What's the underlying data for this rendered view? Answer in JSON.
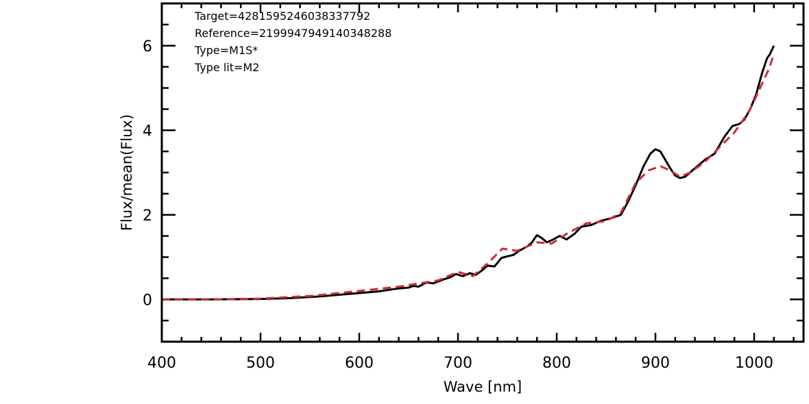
{
  "chart_data": {
    "type": "line",
    "xlabel": "Wave [nm]",
    "ylabel": "Flux/mean(Flux)",
    "xlim": [
      400,
      1050
    ],
    "ylim": [
      -1,
      7
    ],
    "xticks": [
      400,
      500,
      600,
      700,
      800,
      900,
      1000
    ],
    "yticks": [
      0,
      2,
      4,
      6
    ],
    "x_minor_step": 20,
    "y_minor_step": 0.5,
    "grid": false,
    "annotations": [
      "Target=4281595246038337792",
      "Reference=2199947949140348288",
      "Type=M1S*",
      "Type lit=M2"
    ],
    "series": [
      {
        "color": "#000000",
        "style": "solid",
        "points": [
          [
            400,
            0.0
          ],
          [
            450,
            0.0
          ],
          [
            500,
            0.01
          ],
          [
            530,
            0.03
          ],
          [
            560,
            0.07
          ],
          [
            600,
            0.15
          ],
          [
            620,
            0.19
          ],
          [
            640,
            0.26
          ],
          [
            650,
            0.28
          ],
          [
            655,
            0.32
          ],
          [
            660,
            0.3
          ],
          [
            668,
            0.4
          ],
          [
            675,
            0.38
          ],
          [
            685,
            0.47
          ],
          [
            692,
            0.52
          ],
          [
            698,
            0.6
          ],
          [
            705,
            0.55
          ],
          [
            712,
            0.62
          ],
          [
            718,
            0.58
          ],
          [
            724,
            0.68
          ],
          [
            730,
            0.8
          ],
          [
            737,
            0.78
          ],
          [
            744,
            0.98
          ],
          [
            750,
            1.02
          ],
          [
            756,
            1.05
          ],
          [
            762,
            1.15
          ],
          [
            770,
            1.25
          ],
          [
            775,
            1.35
          ],
          [
            780,
            1.52
          ],
          [
            785,
            1.45
          ],
          [
            790,
            1.35
          ],
          [
            795,
            1.4
          ],
          [
            803,
            1.5
          ],
          [
            810,
            1.42
          ],
          [
            818,
            1.55
          ],
          [
            825,
            1.72
          ],
          [
            835,
            1.76
          ],
          [
            845,
            1.86
          ],
          [
            855,
            1.92
          ],
          [
            865,
            2.0
          ],
          [
            872,
            2.3
          ],
          [
            880,
            2.7
          ],
          [
            888,
            3.15
          ],
          [
            895,
            3.45
          ],
          [
            900,
            3.55
          ],
          [
            905,
            3.5
          ],
          [
            910,
            3.3
          ],
          [
            915,
            3.1
          ],
          [
            920,
            2.93
          ],
          [
            925,
            2.87
          ],
          [
            930,
            2.9
          ],
          [
            940,
            3.1
          ],
          [
            950,
            3.3
          ],
          [
            960,
            3.45
          ],
          [
            970,
            3.85
          ],
          [
            978,
            4.1
          ],
          [
            985,
            4.15
          ],
          [
            990,
            4.25
          ],
          [
            996,
            4.5
          ],
          [
            1002,
            4.85
          ],
          [
            1008,
            5.35
          ],
          [
            1013,
            5.7
          ],
          [
            1016,
            5.8
          ],
          [
            1020,
            6.0
          ]
        ]
      },
      {
        "color": "#cc2b36",
        "style": "dashed",
        "points": [
          [
            400,
            0.0
          ],
          [
            450,
            0.0
          ],
          [
            500,
            0.02
          ],
          [
            550,
            0.08
          ],
          [
            600,
            0.2
          ],
          [
            640,
            0.3
          ],
          [
            680,
            0.45
          ],
          [
            700,
            0.65
          ],
          [
            715,
            0.55
          ],
          [
            730,
            0.85
          ],
          [
            745,
            1.2
          ],
          [
            760,
            1.15
          ],
          [
            780,
            1.35
          ],
          [
            795,
            1.32
          ],
          [
            810,
            1.55
          ],
          [
            830,
            1.8
          ],
          [
            850,
            1.85
          ],
          [
            865,
            2.05
          ],
          [
            880,
            2.75
          ],
          [
            893,
            3.05
          ],
          [
            905,
            3.15
          ],
          [
            915,
            3.05
          ],
          [
            925,
            2.9
          ],
          [
            935,
            3.0
          ],
          [
            950,
            3.25
          ],
          [
            965,
            3.6
          ],
          [
            980,
            3.95
          ],
          [
            995,
            4.45
          ],
          [
            1005,
            4.95
          ],
          [
            1015,
            5.45
          ],
          [
            1020,
            5.8
          ]
        ]
      }
    ]
  }
}
